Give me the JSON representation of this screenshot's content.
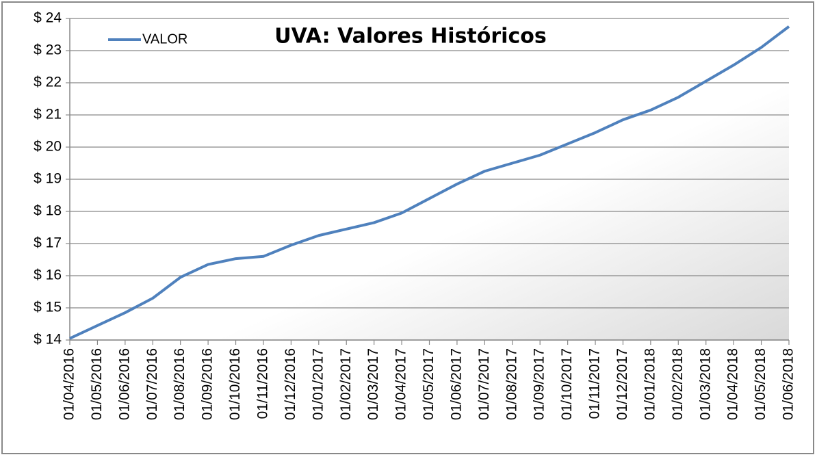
{
  "chart_data": {
    "type": "line",
    "title": "UVA: Valores Históricos",
    "x": [
      "01/04/2016",
      "01/05/2016",
      "01/06/2016",
      "01/07/2016",
      "01/08/2016",
      "01/09/2016",
      "01/10/2016",
      "01/11/2016",
      "01/12/2016",
      "01/01/2017",
      "01/02/2017",
      "01/03/2017",
      "01/04/2017",
      "01/05/2017",
      "01/06/2017",
      "01/07/2017",
      "01/08/2017",
      "01/09/2017",
      "01/10/2017",
      "01/11/2017",
      "01/12/2017",
      "01/01/2018",
      "01/02/2018",
      "01/03/2018",
      "01/04/2018",
      "01/05/2018",
      "01/06/2018"
    ],
    "series": [
      {
        "name": "VALOR",
        "color": "#4f81bd",
        "values": [
          14.05,
          14.45,
          14.85,
          15.3,
          15.95,
          16.35,
          16.53,
          16.6,
          16.95,
          17.25,
          17.45,
          17.65,
          17.95,
          18.4,
          18.85,
          19.25,
          19.5,
          19.75,
          20.1,
          20.45,
          20.85,
          21.15,
          21.55,
          22.05,
          22.55,
          23.1,
          23.75
        ]
      }
    ],
    "ylim": [
      14,
      24
    ],
    "yticks": [
      {
        "value": 14,
        "label": "$ 14"
      },
      {
        "value": 15,
        "label": "$ 15"
      },
      {
        "value": 16,
        "label": "$ 16"
      },
      {
        "value": 17,
        "label": "$ 17"
      },
      {
        "value": 18,
        "label": "$ 18"
      },
      {
        "value": 19,
        "label": "$ 19"
      },
      {
        "value": 20,
        "label": "$ 20"
      },
      {
        "value": 21,
        "label": "$ 21"
      },
      {
        "value": 22,
        "label": "$ 22"
      },
      {
        "value": 23,
        "label": "$ 23"
      },
      {
        "value": 24,
        "label": "$ 24"
      }
    ],
    "grid": true,
    "legend": "upper left"
  }
}
